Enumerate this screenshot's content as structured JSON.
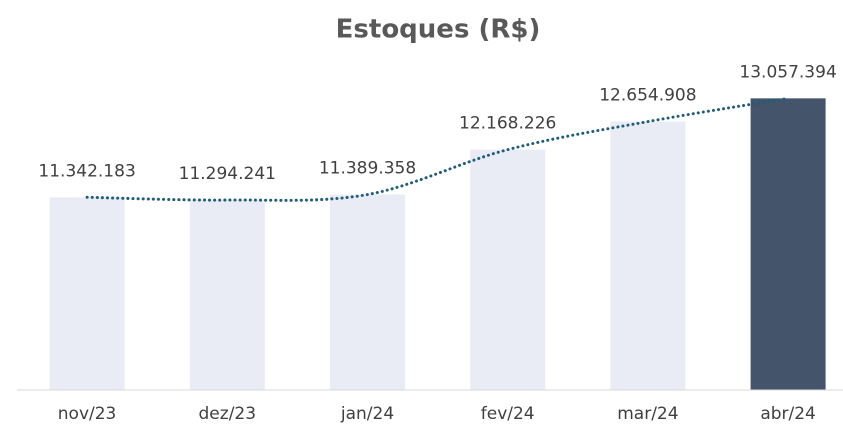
{
  "chart_data": {
    "type": "bar",
    "title": "Estoques (R$)",
    "categories": [
      "nov/23",
      "dez/23",
      "jan/24",
      "fev/24",
      "mar/24",
      "abr/24"
    ],
    "values": [
      11342183,
      11294241,
      11389358,
      12168226,
      12654908,
      13057394
    ],
    "value_labels": [
      "11.342.183",
      "11.294.241",
      "11.389.358",
      "12.168.226",
      "12.654.908",
      "13.057.394"
    ],
    "colors": [
      "#e9ebf5",
      "#e9ebf5",
      "#e9ebf5",
      "#e9ebf5",
      "#e9ebf5",
      "#44546a"
    ],
    "ylim": [
      8000000,
      14000000
    ],
    "trendline": true,
    "trendline_color": "#1f5d78"
  }
}
